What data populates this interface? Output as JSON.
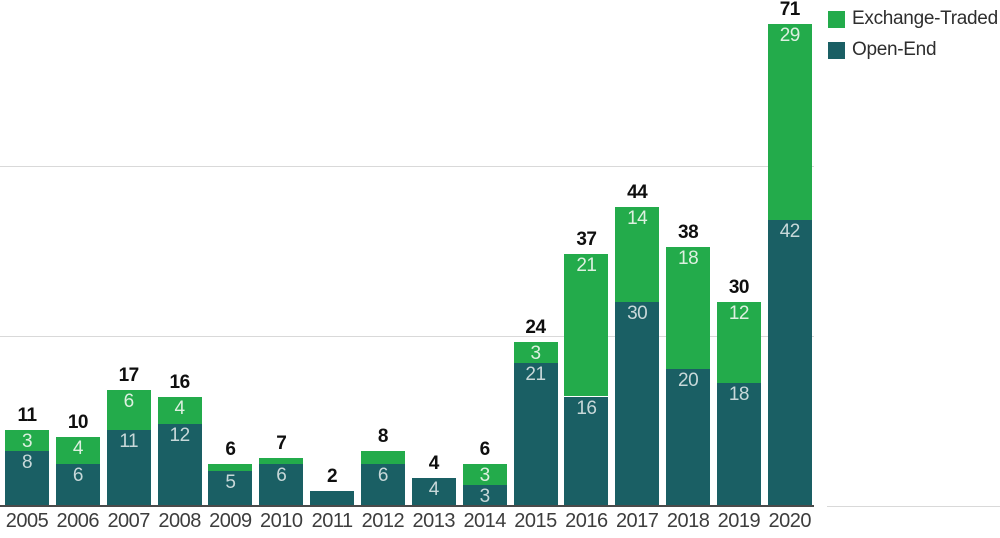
{
  "chart_data": {
    "type": "bar",
    "stacked": true,
    "title": "",
    "xlabel": "",
    "ylabel": "",
    "ylim": [
      0,
      75
    ],
    "gridline_values": [
      25,
      50
    ],
    "grid": "horizontal",
    "categories": [
      "2005",
      "2006",
      "2007",
      "2008",
      "2009",
      "2010",
      "2011",
      "2012",
      "2013",
      "2014",
      "2015",
      "2016",
      "2017",
      "2018",
      "2019",
      "2020"
    ],
    "series": [
      {
        "name": "Open-End",
        "color": "#1a5f64",
        "label_color": "#c8d8d9",
        "values": [
          8,
          6,
          11,
          12,
          5,
          6,
          2,
          6,
          4,
          3,
          21,
          16,
          30,
          20,
          18,
          42
        ],
        "labels": [
          "8",
          "6",
          "11",
          "12",
          "5",
          "6",
          "",
          "6",
          "4",
          "3",
          "21",
          "16",
          "30",
          "20",
          "18",
          "42"
        ]
      },
      {
        "name": "Exchange-Traded",
        "color": "#23ab4b",
        "label_color": "#ddf0e0",
        "values": [
          3,
          4,
          6,
          4,
          1,
          1,
          0,
          2,
          0,
          3,
          3,
          21,
          14,
          18,
          12,
          29
        ],
        "labels": [
          "3",
          "4",
          "6",
          "4",
          "",
          "",
          "",
          "",
          "",
          "3",
          "3",
          "21",
          "14",
          "18",
          "12",
          "29"
        ]
      }
    ],
    "totals": [
      11,
      10,
      17,
      16,
      6,
      7,
      2,
      8,
      4,
      6,
      24,
      37,
      44,
      38,
      30,
      71
    ],
    "total_labels": [
      "11",
      "10",
      "17",
      "16",
      "6",
      "7",
      "2",
      "8",
      "4",
      "6",
      "24",
      "37",
      "44",
      "38",
      "30",
      "71"
    ],
    "legend": {
      "position": "top-right",
      "items": [
        {
          "label": "Exchange-Traded",
          "color": "#23ab4b"
        },
        {
          "label": "Open-End",
          "color": "#1a5f64"
        }
      ]
    },
    "colors": {
      "axis_line": "#4a4a4a",
      "gridline": "#d9d9d9",
      "x_label": "#3d3d3d",
      "total_label": "#0f0f0f"
    }
  }
}
